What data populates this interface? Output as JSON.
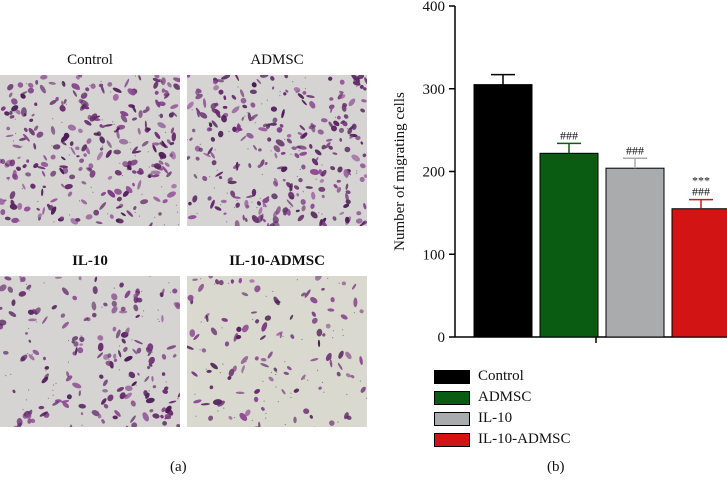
{
  "panel_a": {
    "label": "(a)",
    "images": [
      {
        "title": "Control",
        "bold": false,
        "density": "high"
      },
      {
        "title": "ADMSC",
        "bold": false,
        "density": "high"
      },
      {
        "title": "IL-10",
        "bold": true,
        "density": "medium"
      },
      {
        "title": "IL-10-ADMSC",
        "bold": true,
        "density": "low"
      }
    ]
  },
  "panel_b": {
    "label": "(b)"
  },
  "chart_data": {
    "type": "bar",
    "ylabel": "Number of migrating cells",
    "ylim": [
      0,
      400
    ],
    "yticks": [
      0,
      100,
      200,
      300,
      400
    ],
    "grid": false,
    "legend_placement": "bottom",
    "series": [
      {
        "name": "Control",
        "value": 305,
        "error": 12,
        "color": "#000000",
        "annotation": []
      },
      {
        "name": "ADMSC",
        "value": 222,
        "error": 12,
        "color": "#0a5c12",
        "annotation": [
          "###"
        ]
      },
      {
        "name": "IL-10",
        "value": 204,
        "error": 12,
        "color": "#a9abad",
        "annotation": [
          "###"
        ]
      },
      {
        "name": "IL-10-ADMSC",
        "value": 155,
        "error": 11,
        "color": "#d21414",
        "annotation": [
          "***",
          "###"
        ]
      }
    ]
  }
}
